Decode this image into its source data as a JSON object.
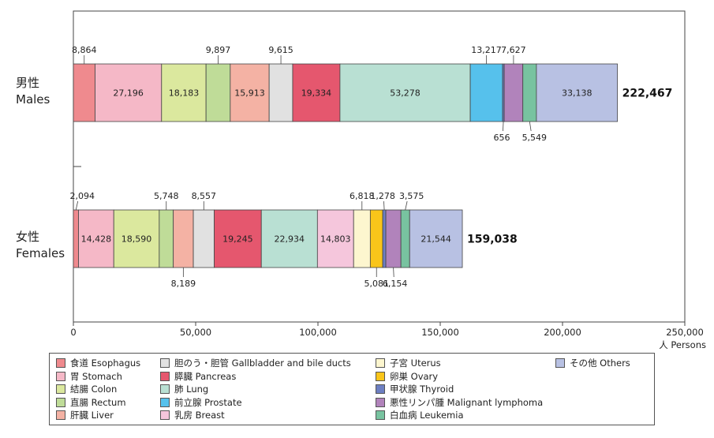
{
  "chart_data": {
    "type": "bar",
    "orientation": "horizontal",
    "stacked": true,
    "x_unit_label": "人 Persons",
    "xlim": [
      0,
      250000
    ],
    "xticks": [
      0,
      50000,
      100000,
      150000,
      200000,
      250000
    ],
    "xtick_labels": [
      "0",
      "50,000",
      "100,000",
      "150,000",
      "200,000",
      "250,000"
    ],
    "grid": false,
    "legend_position": "bottom",
    "categories": [
      {
        "ja": "男性",
        "en": "Males",
        "total": 222467,
        "total_label": "222,467"
      },
      {
        "ja": "女性",
        "en": "Females",
        "total": 159038,
        "total_label": "159,038"
      }
    ],
    "series": [
      {
        "key": "esophagus",
        "name": "食道 Esophagus",
        "color": "#ef8a8e",
        "values": [
          8864,
          2094
        ],
        "labels": [
          "8,864",
          "2,094"
        ]
      },
      {
        "key": "stomach",
        "name": "胃 Stomach",
        "color": "#f5b8c7",
        "values": [
          27196,
          14428
        ],
        "labels": [
          "27,196",
          "14,428"
        ]
      },
      {
        "key": "colon",
        "name": "結腸 Colon",
        "color": "#dbe89e",
        "values": [
          18183,
          18590
        ],
        "labels": [
          "18,183",
          "18,590"
        ]
      },
      {
        "key": "rectum",
        "name": "直腸 Rectum",
        "color": "#bfdc98",
        "values": [
          9897,
          5748
        ],
        "labels": [
          "9,897",
          "5,748"
        ]
      },
      {
        "key": "liver",
        "name": "肝臓 Liver",
        "color": "#f4b2a4",
        "values": [
          15913,
          8189
        ],
        "labels": [
          "15,913",
          "8,189"
        ]
      },
      {
        "key": "gallbladder",
        "name": "胆のう・胆管 Gallbladder and bile ducts",
        "color": "#e1e1e1",
        "values": [
          9615,
          8557
        ],
        "labels": [
          "9,615",
          "8,557"
        ]
      },
      {
        "key": "pancreas",
        "name": "膵臓 Pancreas",
        "color": "#e5576e",
        "values": [
          19334,
          19245
        ],
        "labels": [
          "19,334",
          "19,245"
        ]
      },
      {
        "key": "lung",
        "name": "肺 Lung",
        "color": "#b9e0d3",
        "values": [
          53278,
          22934
        ],
        "labels": [
          "53,278",
          "22,934"
        ]
      },
      {
        "key": "breast",
        "name": "乳房 Breast",
        "color": "#f5c6dc",
        "values": [
          0,
          14803
        ],
        "labels": [
          "",
          "14,803"
        ]
      },
      {
        "key": "uterus",
        "name": "子宮 Uterus",
        "color": "#fdf6cf",
        "values": [
          0,
          6818
        ],
        "labels": [
          "",
          "6,818"
        ]
      },
      {
        "key": "ovary",
        "name": "卵巣 Ovary",
        "color": "#f9c51a",
        "values": [
          0,
          5081
        ],
        "labels": [
          "",
          "5,081"
        ]
      },
      {
        "key": "prostate",
        "name": "前立腺 Prostate",
        "color": "#56c1ec",
        "values": [
          13217,
          0
        ],
        "labels": [
          "13,217",
          ""
        ]
      },
      {
        "key": "thyroid",
        "name": "甲状腺 Thyroid",
        "color": "#6d7fc2",
        "values": [
          656,
          1278
        ],
        "labels": [
          "656",
          "1,278"
        ]
      },
      {
        "key": "lymphoma",
        "name": "悪性リンパ腫 Malignant lymphoma",
        "color": "#b183bb",
        "values": [
          7627,
          6154
        ],
        "labels": [
          "7,627",
          "6,154"
        ]
      },
      {
        "key": "leukemia",
        "name": "白血病 Leukemia",
        "color": "#78c3a0",
        "values": [
          5549,
          3575
        ],
        "labels": [
          "5,549",
          "3,575"
        ]
      },
      {
        "key": "others",
        "name": "その他 Others",
        "color": "#b8c1e3",
        "values": [
          33138,
          21544
        ],
        "labels": [
          "33,138",
          "21,544"
        ]
      }
    ],
    "stack_order": [
      [
        "esophagus",
        "stomach",
        "colon",
        "rectum",
        "liver",
        "gallbladder",
        "pancreas",
        "lung",
        "prostate",
        "thyroid",
        "lymphoma",
        "leukemia",
        "others"
      ],
      [
        "esophagus",
        "stomach",
        "colon",
        "rectum",
        "liver",
        "gallbladder",
        "pancreas",
        "lung",
        "breast",
        "uterus",
        "ovary",
        "thyroid",
        "lymphoma",
        "leukemia",
        "others"
      ]
    ],
    "legend_columns": [
      [
        "esophagus",
        "stomach",
        "colon",
        "rectum",
        "liver"
      ],
      [
        "gallbladder",
        "pancreas",
        "lung",
        "prostate",
        "breast"
      ],
      [
        "uterus",
        "ovary",
        "thyroid",
        "lymphoma",
        "leukemia"
      ],
      [
        "others"
      ]
    ]
  }
}
